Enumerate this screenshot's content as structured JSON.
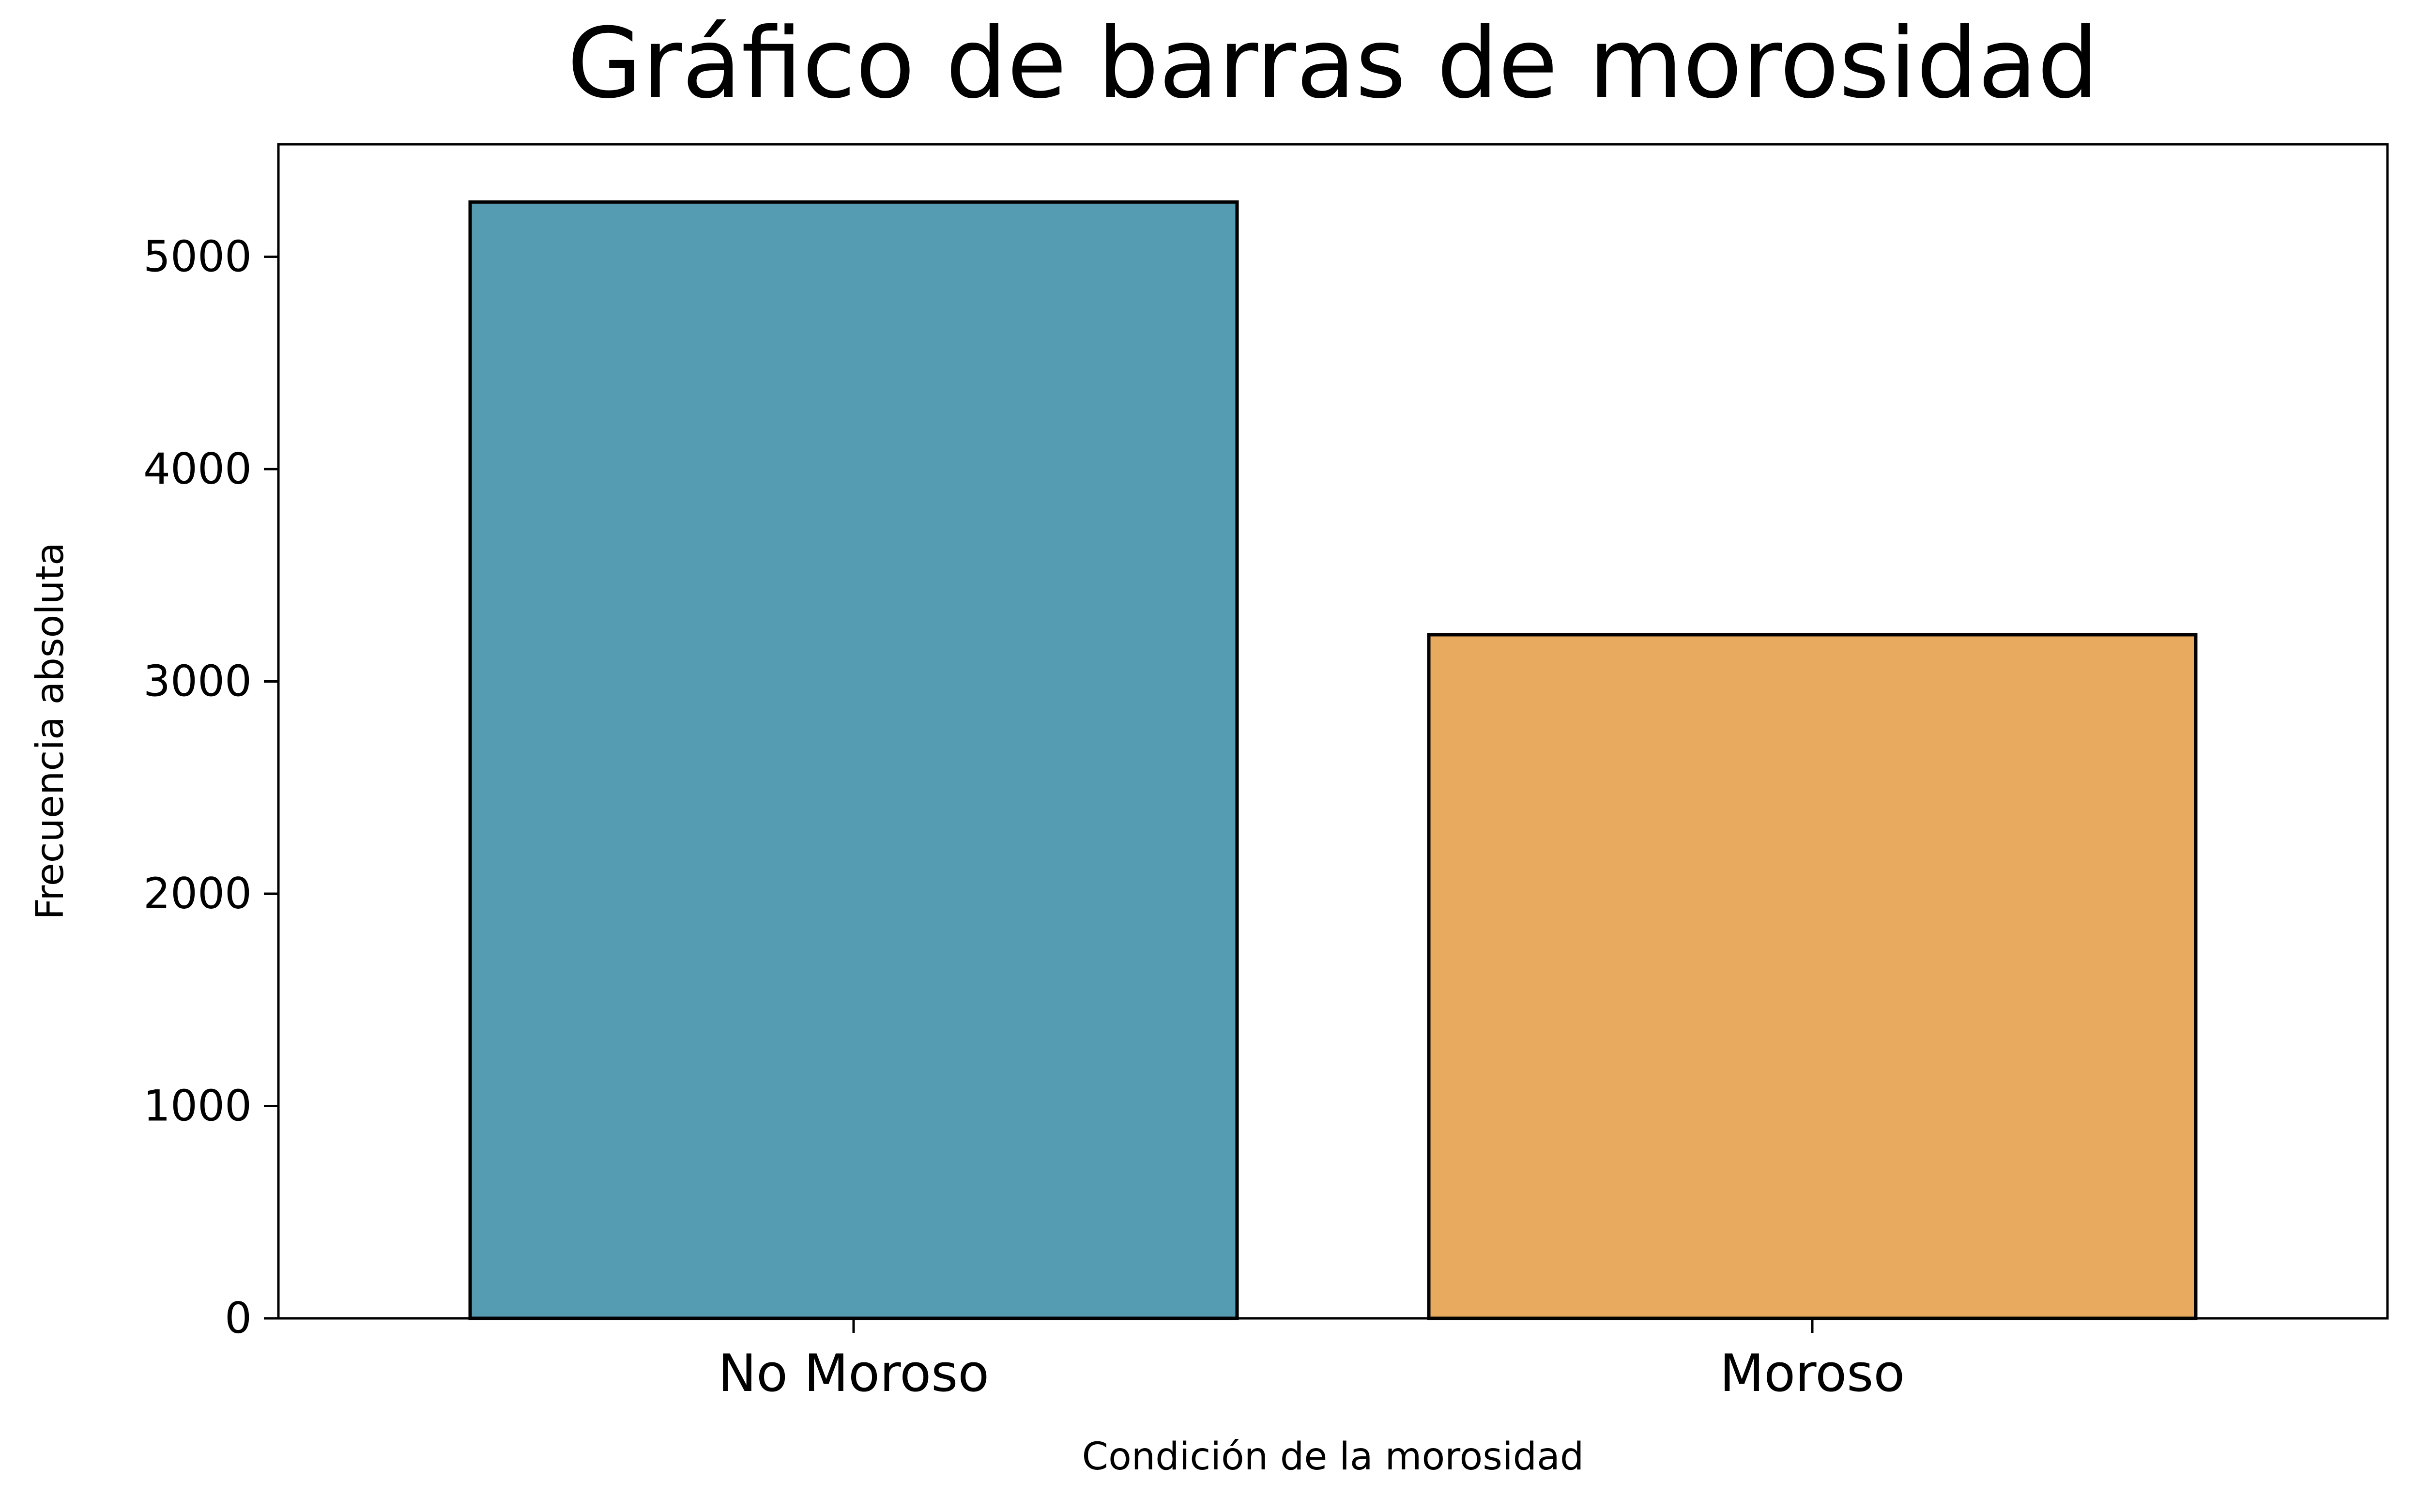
{
  "chart_data": {
    "type": "bar",
    "title": "Gráfico de barras de morosidad",
    "xlabel": "Condición de la morosidad",
    "ylabel": "Frecuencia absoluta",
    "categories": [
      "No Moroso",
      "Moroso"
    ],
    "values": [
      5258,
      3220
    ],
    "colors": [
      "#559cb2",
      "#e8aa5e"
    ],
    "ylim": [
      0,
      5530
    ],
    "yticks": [
      0,
      1000,
      2000,
      3000,
      4000,
      5000
    ],
    "grid": false,
    "legend": "none"
  }
}
